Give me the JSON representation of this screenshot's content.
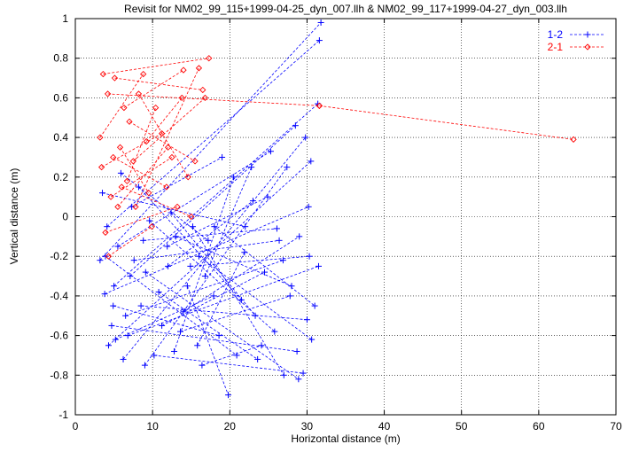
{
  "chart_data": {
    "type": "line",
    "title": "Revisit for NM02_99_115+1999-04-25_dyn_007.llh & NM02_99_117+1999-04-27_dyn_003.llh",
    "xlabel": "Horizontal distance (m)",
    "ylabel": "Vertical distance (m)",
    "xlim": [
      0,
      70
    ],
    "ylim": [
      -1,
      1
    ],
    "x_ticks": [
      "0",
      "10",
      "20",
      "30",
      "40",
      "50",
      "60",
      "70"
    ],
    "y_ticks": [
      "-1",
      "-0.8",
      "-0.6",
      "-0.4",
      "-0.2",
      "0",
      "0.2",
      "0.4",
      "0.6",
      "0.8",
      "1"
    ],
    "grid": true,
    "legend_position": "top-right",
    "series": [
      {
        "name": "1-2",
        "color": "#0000ff",
        "marker": "plus",
        "points": [
          [
            3.2,
            -0.22
          ],
          [
            31.8,
            0.98
          ],
          [
            4.1,
            -0.05
          ],
          [
            31.6,
            0.89
          ],
          [
            5.0,
            -0.35
          ],
          [
            31.4,
            0.57
          ],
          [
            4.3,
            -0.65
          ],
          [
            30.5,
            0.28
          ],
          [
            6.2,
            -0.72
          ],
          [
            29.8,
            0.4
          ],
          [
            7.1,
            -0.3
          ],
          [
            28.5,
            0.46
          ],
          [
            3.8,
            -0.39
          ],
          [
            30.2,
            0.05
          ],
          [
            9.0,
            -0.75
          ],
          [
            27.4,
            0.25
          ],
          [
            5.5,
            -0.15
          ],
          [
            25.3,
            0.33
          ],
          [
            3.5,
            0.12
          ],
          [
            22.0,
            -0.05
          ],
          [
            6.8,
            -0.6
          ],
          [
            31.5,
            -0.25
          ],
          [
            8.5,
            -0.45
          ],
          [
            30.0,
            -0.52
          ],
          [
            4.7,
            -0.55
          ],
          [
            28.7,
            -0.68
          ],
          [
            10.2,
            -0.7
          ],
          [
            29.5,
            -0.79
          ],
          [
            7.6,
            -0.22
          ],
          [
            26.4,
            -0.12
          ],
          [
            12.0,
            -0.25
          ],
          [
            23.0,
            0.08
          ],
          [
            14.5,
            -0.35
          ],
          [
            19.8,
            -0.9
          ],
          [
            11.2,
            -0.55
          ],
          [
            24.5,
            -0.28
          ],
          [
            13.0,
            -0.1
          ],
          [
            28.0,
            -0.35
          ],
          [
            16.0,
            -0.2
          ],
          [
            30.6,
            -0.62
          ],
          [
            15.2,
            -0.05
          ],
          [
            27.0,
            -0.8
          ],
          [
            5.9,
            0.22
          ],
          [
            17.2,
            -0.12
          ],
          [
            8.2,
            0.15
          ],
          [
            21.5,
            -0.42
          ],
          [
            9.6,
            -0.02
          ],
          [
            25.8,
            -0.58
          ],
          [
            12.8,
            -0.68
          ],
          [
            20.5,
            0.2
          ],
          [
            4.9,
            -0.45
          ],
          [
            18.6,
            -0.6
          ],
          [
            6.5,
            -0.5
          ],
          [
            26.9,
            -0.22
          ],
          [
            10.8,
            -0.38
          ],
          [
            23.6,
            -0.72
          ],
          [
            14.0,
            -0.48
          ],
          [
            29.0,
            -0.1
          ],
          [
            16.8,
            -0.3
          ],
          [
            22.8,
            0.25
          ],
          [
            18.0,
            -0.05
          ],
          [
            31.0,
            -0.45
          ],
          [
            7.3,
            0.05
          ],
          [
            19.0,
            0.3
          ],
          [
            9.1,
            -0.28
          ],
          [
            28.9,
            -0.82
          ],
          [
            11.9,
            -0.15
          ],
          [
            24.9,
            0.1
          ],
          [
            13.6,
            -0.58
          ],
          [
            27.8,
            -0.4
          ],
          [
            15.8,
            -0.65
          ],
          [
            21.9,
            -0.18
          ],
          [
            3.9,
            -0.2
          ],
          [
            20.9,
            -0.7
          ],
          [
            5.2,
            -0.62
          ],
          [
            17.9,
            -0.4
          ],
          [
            8.8,
            -0.12
          ],
          [
            26.1,
            -0.06
          ],
          [
            12.4,
            0.02
          ],
          [
            23.3,
            -0.5
          ],
          [
            14.9,
            -0.25
          ],
          [
            30.3,
            -0.2
          ],
          [
            16.4,
            -0.75
          ],
          [
            24.1,
            -0.65
          ]
        ]
      },
      {
        "name": "2-1",
        "color": "#ff0000",
        "marker": "diamond",
        "points": [
          [
            3.6,
            0.72
          ],
          [
            17.3,
            0.8
          ],
          [
            4.2,
            0.62
          ],
          [
            31.6,
            0.56
          ],
          [
            31.6,
            0.56
          ],
          [
            64.5,
            0.39
          ],
          [
            5.1,
            0.7
          ],
          [
            16.5,
            0.64
          ],
          [
            6.3,
            0.55
          ],
          [
            14.0,
            0.74
          ],
          [
            3.4,
            0.25
          ],
          [
            11.2,
            0.42
          ],
          [
            4.6,
            0.1
          ],
          [
            12.5,
            0.3
          ],
          [
            5.8,
            0.35
          ],
          [
            9.5,
            0.12
          ],
          [
            7.0,
            0.48
          ],
          [
            15.5,
            0.28
          ],
          [
            3.9,
            -0.08
          ],
          [
            13.2,
            0.05
          ],
          [
            6.7,
            0.18
          ],
          [
            10.4,
            0.55
          ],
          [
            8.2,
            0.62
          ],
          [
            14.6,
            0.2
          ],
          [
            4.3,
            -0.2
          ],
          [
            9.9,
            -0.05
          ],
          [
            5.5,
            0.05
          ],
          [
            12.0,
            0.35
          ],
          [
            7.5,
            0.28
          ],
          [
            16.8,
            0.6
          ],
          [
            3.2,
            0.4
          ],
          [
            8.8,
            0.72
          ],
          [
            6.0,
            0.15
          ],
          [
            15.0,
            0.0
          ],
          [
            4.9,
            0.3
          ],
          [
            11.8,
            0.15
          ],
          [
            9.2,
            0.38
          ],
          [
            13.8,
            0.6
          ],
          [
            7.8,
            0.05
          ],
          [
            16.0,
            0.75
          ]
        ]
      }
    ]
  }
}
